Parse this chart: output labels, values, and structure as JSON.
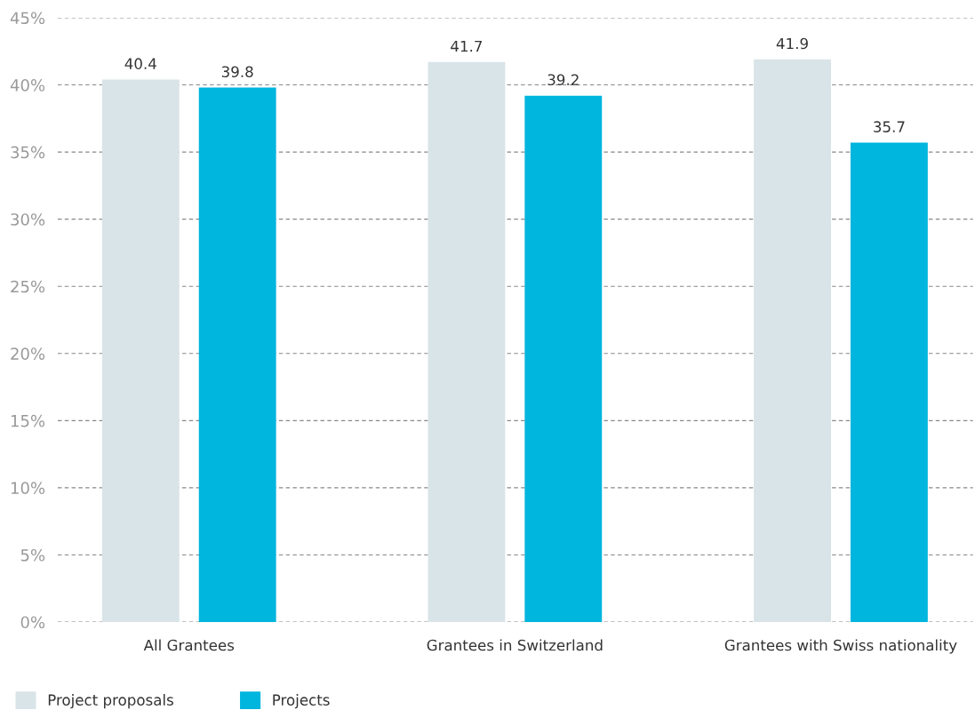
{
  "chart_data": {
    "type": "bar",
    "categories": [
      "All Grantees",
      "Grantees in Switzerland",
      "Grantees with Swiss nationality"
    ],
    "series": [
      {
        "name": "Project proposals",
        "color": "#d9e4e8",
        "values": [
          40.4,
          41.7,
          41.9
        ]
      },
      {
        "name": "Projects",
        "color": "#00b5de",
        "values": [
          39.8,
          39.2,
          35.7
        ]
      }
    ],
    "ylim": [
      0,
      45
    ],
    "yticks": [
      {
        "value": 0,
        "label": "0%"
      },
      {
        "value": 5,
        "label": "5%"
      },
      {
        "value": 10,
        "label": "10%"
      },
      {
        "value": 15,
        "label": "15%"
      },
      {
        "value": 20,
        "label": "20%"
      },
      {
        "value": 25,
        "label": "25%"
      },
      {
        "value": 30,
        "label": "30%"
      },
      {
        "value": 35,
        "label": "35%"
      },
      {
        "value": 40,
        "label": "40%"
      },
      {
        "value": 45,
        "label": "45%"
      }
    ],
    "grid": "y",
    "data_labels": true,
    "legend": "bottom left"
  }
}
